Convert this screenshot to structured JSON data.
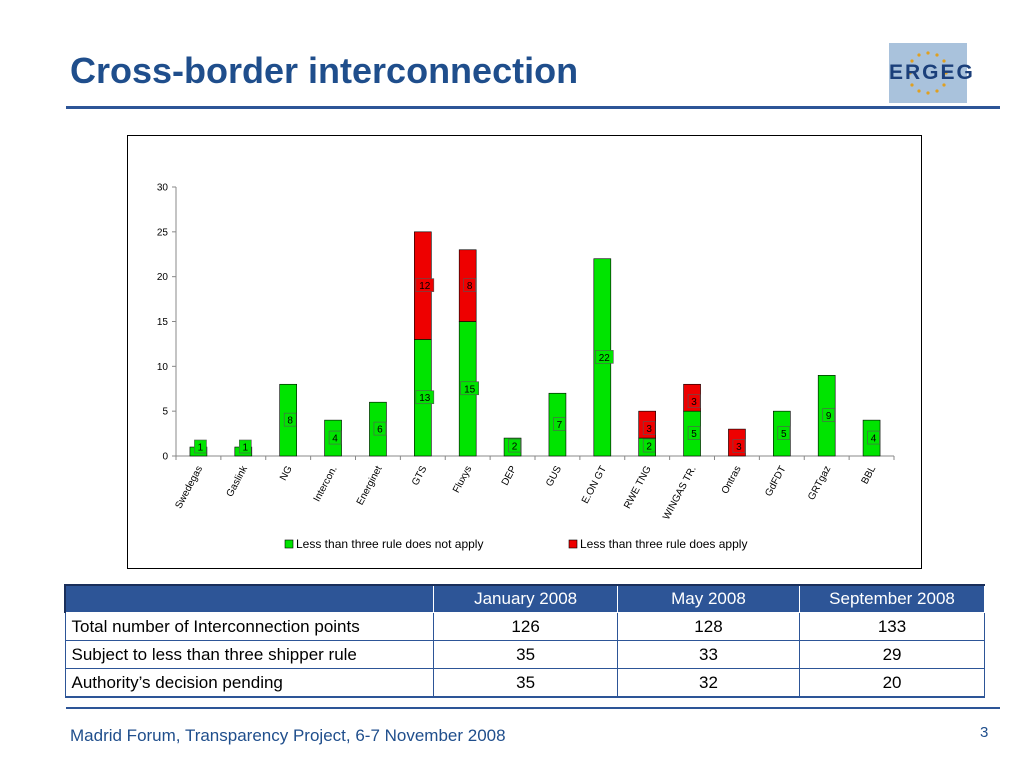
{
  "slide": {
    "title": "Cross-border interconnection",
    "footer": "Madrid Forum, Transparency Project, 6-7 November 2008",
    "page_number": "3",
    "logo_text": "ERGEG"
  },
  "colors": {
    "brand": "#1f4e8c",
    "table_header": "#2d5597",
    "green": "#00e400",
    "red": "#ee0000"
  },
  "chart_data": {
    "type": "bar",
    "stacked": true,
    "categories": [
      "Swedegas",
      "Gaslink",
      "NG",
      "Intercon.",
      "Energinet",
      "GTS",
      "Fluxys",
      "DEP",
      "GUS",
      "E.ON GT",
      "RWE TNG",
      "WINGAS TR.",
      "Ontras",
      "GdFDT",
      "GRTgaz",
      "BBL"
    ],
    "series": [
      {
        "name": "Less than three rule does not apply",
        "color": "#00e400",
        "values": [
          1,
          1,
          8,
          4,
          6,
          13,
          15,
          2,
          7,
          22,
          2,
          5,
          0,
          5,
          9,
          4
        ]
      },
      {
        "name": "Less than three rule does apply",
        "color": "#ee0000",
        "values": [
          0,
          0,
          0,
          0,
          0,
          12,
          8,
          0,
          0,
          0,
          3,
          3,
          3,
          0,
          0,
          0
        ]
      }
    ],
    "ylim": [
      0,
      30
    ],
    "yticks": [
      0,
      5,
      10,
      15,
      20,
      25,
      30
    ],
    "title": "",
    "xlabel": "",
    "ylabel": "",
    "legend": "bottom",
    "grid": false
  },
  "table": {
    "headers": [
      "",
      "January 2008",
      "May 2008",
      "September 2008"
    ],
    "rows": [
      [
        "Total number of Interconnection points",
        "126",
        "128",
        "133"
      ],
      [
        "Subject to less than three shipper rule",
        "35",
        "33",
        "29"
      ],
      [
        "Authority’s decision pending",
        "35",
        "32",
        "20"
      ]
    ]
  }
}
